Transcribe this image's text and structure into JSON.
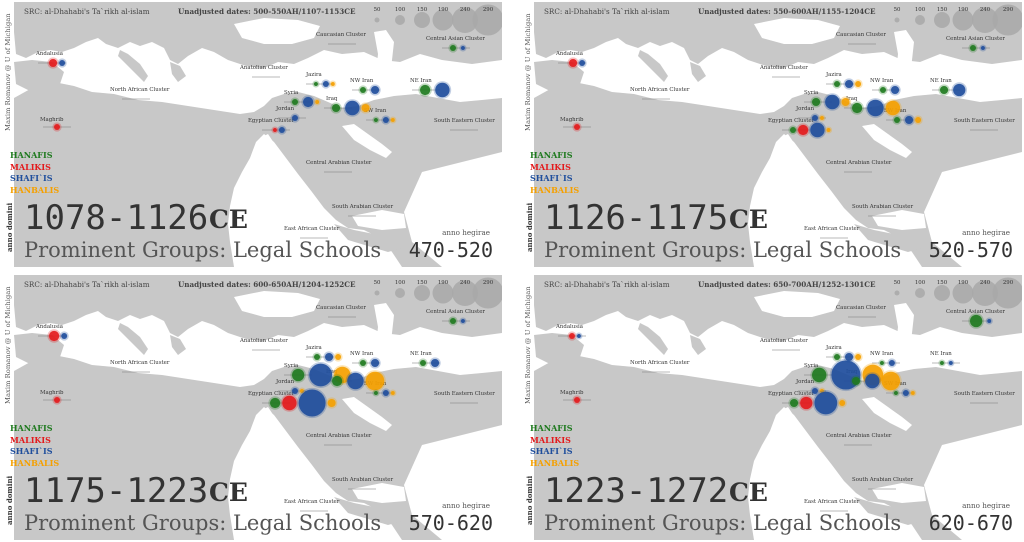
{
  "legend": [
    {
      "label": "HANAFIS",
      "color": "#1f7a1f"
    },
    {
      "label": "MALIKIS",
      "color": "#e31a1c"
    },
    {
      "label": "SHAFI`IS",
      "color": "#1f4e9c"
    },
    {
      "label": "HANBALIS",
      "color": "#f5a000"
    }
  ],
  "group_colors": {
    "hanafi": "#1f7a1f",
    "maliki": "#e31a1c",
    "shafii": "#1f4e9c",
    "hanbali": "#f5a000"
  },
  "scale_values": [
    "50",
    "100",
    "150",
    "190",
    "240",
    "290"
  ],
  "regions": [
    "Andalusia",
    "Maghrib",
    "North African Cluster",
    "Anatolian Cluster",
    "Caucasian Cluster",
    "Central Asian Cluster",
    "Jazira",
    "Syria",
    "Iraq",
    "NW Iran",
    "NE Iran",
    "SW Iran",
    "Jordan",
    "Egyptian Cluster",
    "South Eastern Cluster",
    "Central Arabian Cluster",
    "South Arabian Cluster",
    "East African Cluster"
  ],
  "panels": [
    {
      "src": "SRC: al-Dhahabi's Ta`rikh al-islam",
      "dates": "Unadjusted dates: 500-550AH/1107-1153CE",
      "credit": "Maxim Romanov @ U of Michigan",
      "anno_domini": "anno domini",
      "anno_hegirae": "anno hegirae",
      "ce_years": "1078-1126",
      "ce_suffix": "CE",
      "subtitle": "Prominent Groups: Legal Schools",
      "ah_years": "470-520",
      "circles": [
        {
          "region": "Andalusia",
          "sizes": [
            0,
            3,
            2,
            0
          ]
        },
        {
          "region": "Maghrib",
          "sizes": [
            0,
            2,
            0,
            0
          ]
        },
        {
          "region": "Syria",
          "sizes": [
            2,
            0,
            4,
            1
          ]
        },
        {
          "region": "Jazira",
          "sizes": [
            1,
            0,
            2,
            1
          ]
        },
        {
          "region": "Iraq",
          "sizes": [
            3,
            0,
            6,
            3
          ]
        },
        {
          "region": "NW Iran",
          "sizes": [
            2,
            0,
            3,
            0
          ]
        },
        {
          "region": "NE Iran",
          "sizes": [
            4,
            0,
            6,
            0
          ]
        },
        {
          "region": "SW Iran",
          "sizes": [
            1,
            0,
            2,
            1
          ]
        },
        {
          "region": "Jordan",
          "sizes": [
            0,
            0,
            2,
            0
          ]
        },
        {
          "region": "Central Asian Cluster",
          "sizes": [
            2,
            0,
            1,
            0
          ]
        },
        {
          "region": "Egyptian Cluster",
          "sizes": [
            0,
            1,
            2,
            0
          ]
        }
      ]
    },
    {
      "src": "SRC: al-Dhahabi's Ta`rikh al-islam",
      "dates": "Unadjusted dates: 550-600AH/1155-1204CE",
      "credit": "Maxim Romanov @ U of Michigan",
      "anno_domini": "anno domini",
      "anno_hegirae": "anno hegirae",
      "ce_years": "1126-1175",
      "ce_suffix": "CE",
      "subtitle": "Prominent Groups: Legal Schools",
      "ah_years": "520-570",
      "circles": [
        {
          "region": "Andalusia",
          "sizes": [
            0,
            3,
            2,
            0
          ]
        },
        {
          "region": "Maghrib",
          "sizes": [
            0,
            2,
            0,
            0
          ]
        },
        {
          "region": "Syria",
          "sizes": [
            3,
            0,
            6,
            3
          ]
        },
        {
          "region": "Jazira",
          "sizes": [
            2,
            0,
            3,
            2
          ]
        },
        {
          "region": "Iraq",
          "sizes": [
            4,
            0,
            7,
            6
          ]
        },
        {
          "region": "NW Iran",
          "sizes": [
            2,
            0,
            3,
            0
          ]
        },
        {
          "region": "NE Iran",
          "sizes": [
            3,
            0,
            5,
            0
          ]
        },
        {
          "region": "SW Iran",
          "sizes": [
            2,
            0,
            3,
            2
          ]
        },
        {
          "region": "Jordan",
          "sizes": [
            0,
            0,
            2,
            1
          ]
        },
        {
          "region": "Central Asian Cluster",
          "sizes": [
            2,
            0,
            1,
            0
          ]
        },
        {
          "region": "Egyptian Cluster",
          "sizes": [
            2,
            4,
            6,
            1
          ]
        }
      ]
    },
    {
      "src": "SRC: al-Dhahabi's Ta`rikh al-islam",
      "dates": "Unadjusted dates: 600-650AH/1204-1252CE",
      "credit": "Maxim Romanov @ U of Michigan",
      "anno_domini": "anno domini",
      "anno_hegirae": "anno hegirae",
      "ce_years": "1175-1223",
      "ce_suffix": "CE",
      "subtitle": "Prominent Groups: Legal Schools",
      "ah_years": "570-620",
      "circles": [
        {
          "region": "Andalusia",
          "sizes": [
            0,
            4,
            2,
            0
          ]
        },
        {
          "region": "Maghrib",
          "sizes": [
            0,
            2,
            0,
            0
          ]
        },
        {
          "region": "Syria",
          "sizes": [
            5,
            0,
            10,
            7
          ]
        },
        {
          "region": "Jazira",
          "sizes": [
            2,
            0,
            3,
            2
          ]
        },
        {
          "region": "Iraq",
          "sizes": [
            4,
            0,
            7,
            8
          ]
        },
        {
          "region": "NW Iran",
          "sizes": [
            2,
            0,
            3,
            0
          ]
        },
        {
          "region": "NE Iran",
          "sizes": [
            2,
            0,
            3,
            0
          ]
        },
        {
          "region": "SW Iran",
          "sizes": [
            1,
            0,
            2,
            1
          ]
        },
        {
          "region": "Jordan",
          "sizes": [
            0,
            0,
            2,
            1
          ]
        },
        {
          "region": "Central Asian Cluster",
          "sizes": [
            2,
            0,
            1,
            0
          ]
        },
        {
          "region": "Egyptian Cluster",
          "sizes": [
            4,
            6,
            12,
            3
          ]
        }
      ]
    },
    {
      "src": "SRC: al-Dhahabi's Ta`rikh al-islam",
      "dates": "Unadjusted dates: 650-700AH/1252-1301CE",
      "credit": "Maxim Romanov @ U of Michigan",
      "anno_domini": "anno domini",
      "anno_hegirae": "anno hegirae",
      "ce_years": "1223-1272",
      "ce_suffix": "CE",
      "subtitle": "Prominent Groups: Legal Schools",
      "ah_years": "620-670",
      "circles": [
        {
          "region": "Andalusia",
          "sizes": [
            0,
            2,
            1,
            0
          ]
        },
        {
          "region": "Maghrib",
          "sizes": [
            0,
            2,
            0,
            0
          ]
        },
        {
          "region": "Syria",
          "sizes": [
            6,
            0,
            13,
            9
          ]
        },
        {
          "region": "Jazira",
          "sizes": [
            2,
            0,
            3,
            2
          ]
        },
        {
          "region": "Iraq",
          "sizes": [
            3,
            0,
            6,
            8
          ]
        },
        {
          "region": "NW Iran",
          "sizes": [
            1,
            0,
            2,
            0
          ]
        },
        {
          "region": "NE Iran",
          "sizes": [
            1,
            0,
            1,
            0
          ]
        },
        {
          "region": "SW Iran",
          "sizes": [
            1,
            0,
            2,
            1
          ]
        },
        {
          "region": "Jordan",
          "sizes": [
            0,
            0,
            2,
            1
          ]
        },
        {
          "region": "Central Asian Cluster",
          "sizes": [
            5,
            0,
            1,
            0
          ]
        },
        {
          "region": "Egyptian Cluster",
          "sizes": [
            3,
            5,
            10,
            2
          ]
        }
      ]
    }
  ]
}
